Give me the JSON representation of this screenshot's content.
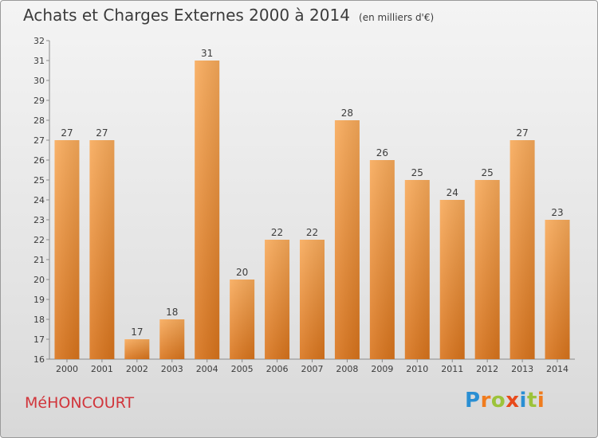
{
  "title": "Achats et Charges Externes 2000 à 2014",
  "subtitle": "(en milliers d'€)",
  "town": "MéHONCOURT",
  "logo": {
    "text": "Proxiti",
    "letters": [
      "P",
      "r",
      "o",
      "x",
      "i",
      "t",
      "i"
    ],
    "colors": [
      "#2a8fd3",
      "#f07c1e",
      "#9cc33a",
      "#e84a1b",
      "#2a8fd3",
      "#9cc33a",
      "#f07c1e"
    ]
  },
  "colors": {
    "bar_light": "#f8aa5a",
    "bar_dark": "#d9741c",
    "axis": "#8a8a8a",
    "text": "#3c3c3c"
  },
  "chart_data": {
    "type": "bar",
    "categories": [
      "2000",
      "2001",
      "2002",
      "2003",
      "2004",
      "2005",
      "2006",
      "2007",
      "2008",
      "2009",
      "2010",
      "2011",
      "2012",
      "2013",
      "2014"
    ],
    "values": [
      27,
      27,
      17,
      18,
      31,
      20,
      22,
      22,
      28,
      26,
      25,
      24,
      25,
      27,
      23
    ],
    "ylim": [
      16,
      32
    ],
    "yticks": [
      16,
      17,
      18,
      19,
      20,
      21,
      22,
      23,
      24,
      25,
      26,
      27,
      28,
      29,
      30,
      31,
      32
    ],
    "xlabel": "",
    "ylabel": "",
    "grid": false,
    "data_labels": true
  }
}
